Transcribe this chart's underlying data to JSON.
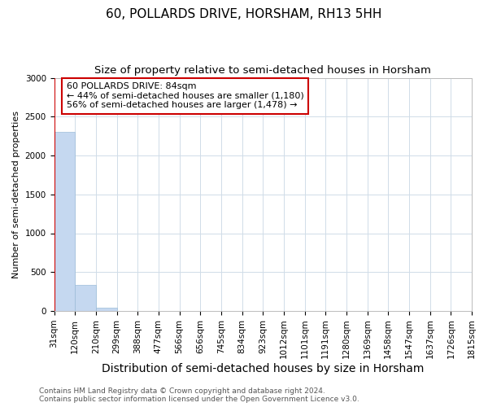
{
  "title": "60, POLLARDS DRIVE, HORSHAM, RH13 5HH",
  "subtitle": "Size of property relative to semi-detached houses in Horsham",
  "xlabel": "Distribution of semi-detached houses by size in Horsham",
  "ylabel": "Number of semi-detached properties",
  "bar_values": [
    2300,
    340,
    45,
    0,
    0,
    0,
    0,
    0,
    0,
    0,
    0,
    0,
    0,
    0,
    0,
    0,
    0,
    0,
    0,
    0
  ],
  "bar_color": "#c5d8f0",
  "bar_edge_color": "#9bbcd8",
  "x_labels": [
    "31sqm",
    "120sqm",
    "210sqm",
    "299sqm",
    "388sqm",
    "477sqm",
    "566sqm",
    "656sqm",
    "745sqm",
    "834sqm",
    "923sqm",
    "1012sqm",
    "1101sqm",
    "1191sqm",
    "1280sqm",
    "1369sqm",
    "1458sqm",
    "1547sqm",
    "1637sqm",
    "1726sqm",
    "1815sqm"
  ],
  "ylim": [
    0,
    3000
  ],
  "yticks": [
    0,
    500,
    1000,
    1500,
    2000,
    2500,
    3000
  ],
  "annotation_text": "60 POLLARDS DRIVE: 84sqm\n← 44% of semi-detached houses are smaller (1,180)\n56% of semi-detached houses are larger (1,478) →",
  "annotation_box_color": "#ffffff",
  "annotation_border_color": "#cc0000",
  "red_line_color": "#cc0000",
  "footer_text": "Contains HM Land Registry data © Crown copyright and database right 2024.\nContains public sector information licensed under the Open Government Licence v3.0.",
  "background_color": "#ffffff",
  "grid_color": "#d0dce8",
  "title_fontsize": 11,
  "subtitle_fontsize": 9.5,
  "xlabel_fontsize": 10,
  "ylabel_fontsize": 8,
  "tick_fontsize": 7.5,
  "annotation_fontsize": 8,
  "footer_fontsize": 6.5
}
